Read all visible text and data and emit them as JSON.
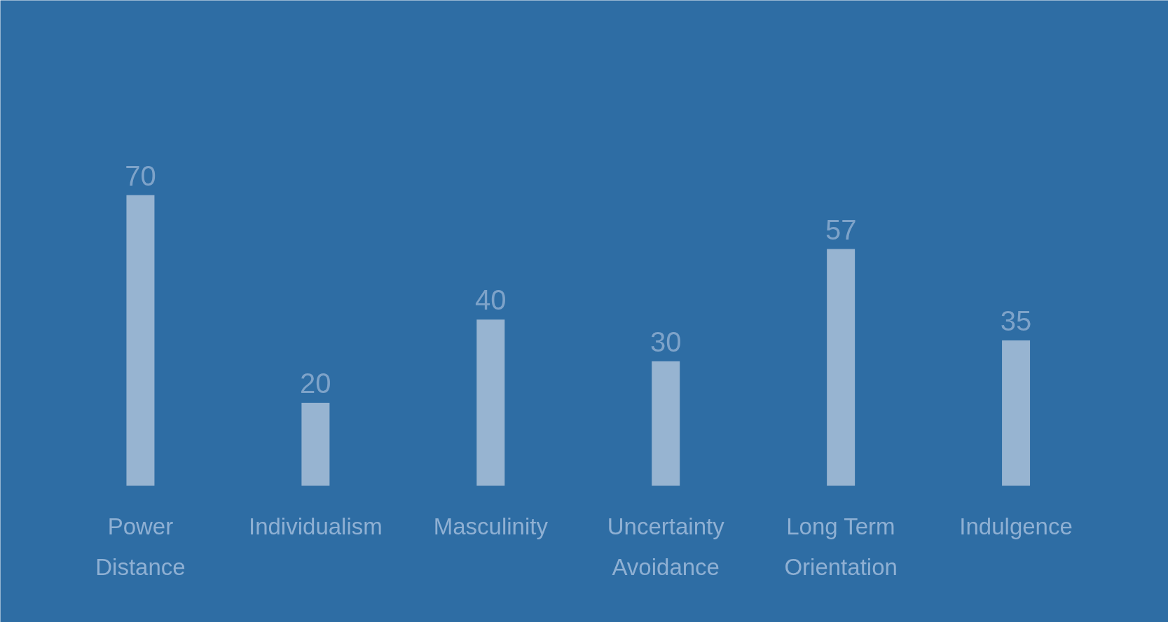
{
  "chart_data": {
    "type": "bar",
    "categories": [
      "Power Distance",
      "Individualism",
      "Masculinity",
      "Uncertainty Avoidance",
      "Long Term Orientation",
      "Indulgence"
    ],
    "values": [
      70,
      20,
      40,
      30,
      57,
      35
    ],
    "color": "#97b4d1",
    "data_labels": true
  }
}
